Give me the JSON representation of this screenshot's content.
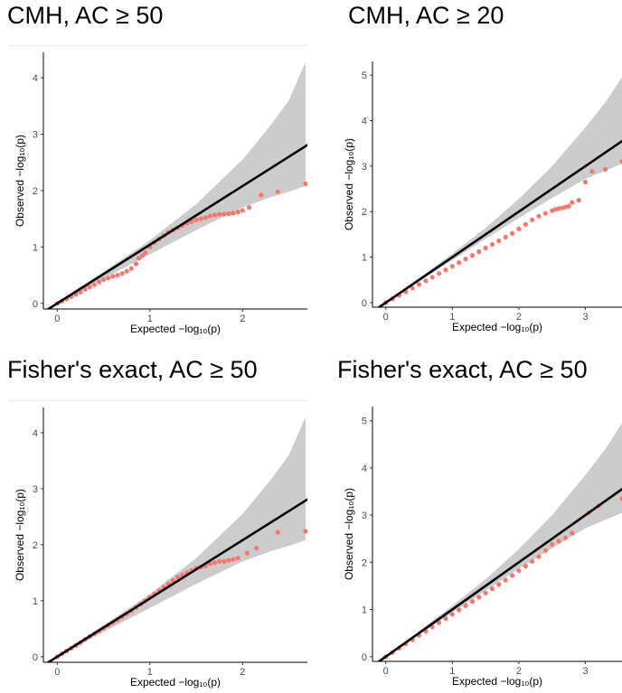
{
  "chart_data": [
    {
      "type": "scatter",
      "title": "CMH, AC ≥ 50",
      "xlabel": "Expected −log₁₀(p)",
      "ylabel": "Observed −log₁₀(p)",
      "xlim": [
        -0.15,
        2.7
      ],
      "ylim": [
        -0.1,
        4.45
      ],
      "xticks": [
        0,
        1,
        2
      ],
      "yticks": [
        0,
        1,
        2,
        3,
        4
      ],
      "grid": false,
      "reference_line": {
        "slope": 1.04,
        "intercept": 0
      },
      "band": {
        "x": [
          0,
          0.5,
          1.0,
          1.5,
          2.0,
          2.3,
          2.5,
          2.68
        ],
        "lower": [
          0,
          0.44,
          0.87,
          1.3,
          1.7,
          1.88,
          1.98,
          2.08
        ],
        "upper": [
          0.02,
          0.56,
          1.12,
          1.76,
          2.55,
          3.15,
          3.6,
          4.28
        ]
      },
      "series": [
        {
          "color": "#f8766d",
          "x": [
            0,
            0.05,
            0.1,
            0.15,
            0.2,
            0.25,
            0.3,
            0.35,
            0.4,
            0.45,
            0.5,
            0.55,
            0.6,
            0.65,
            0.7,
            0.75,
            0.8,
            0.85,
            0.88,
            0.92,
            0.95,
            1.0,
            1.05,
            1.1,
            1.15,
            1.2,
            1.25,
            1.3,
            1.35,
            1.4,
            1.45,
            1.5,
            1.55,
            1.6,
            1.65,
            1.7,
            1.75,
            1.8,
            1.85,
            1.9,
            1.95,
            2.0,
            2.07,
            2.2,
            2.38,
            2.68
          ],
          "y": [
            0,
            0.04,
            0.08,
            0.12,
            0.16,
            0.2,
            0.25,
            0.29,
            0.33,
            0.38,
            0.42,
            0.45,
            0.48,
            0.5,
            0.53,
            0.57,
            0.62,
            0.7,
            0.8,
            0.85,
            0.9,
            1.0,
            1.08,
            1.14,
            1.2,
            1.26,
            1.3,
            1.34,
            1.38,
            1.42,
            1.45,
            1.48,
            1.5,
            1.52,
            1.55,
            1.57,
            1.58,
            1.58,
            1.59,
            1.6,
            1.62,
            1.65,
            1.7,
            1.92,
            1.98,
            2.12
          ]
        }
      ]
    },
    {
      "type": "scatter",
      "title": "CMH, AC ≥ 20",
      "xlabel": "Expected −log₁₀(p)",
      "ylabel": "Observed −log₁₀(p)",
      "xlim": [
        -0.2,
        3.55
      ],
      "ylim": [
        -0.1,
        5.3
      ],
      "xticks": [
        0,
        1,
        2,
        3
      ],
      "yticks": [
        0,
        1,
        2,
        3,
        4,
        5
      ],
      "grid": false,
      "reference_line": {
        "slope": 1.0,
        "intercept": 0
      },
      "band": {
        "x": [
          0,
          0.5,
          1.0,
          1.5,
          2.0,
          2.5,
          3.0,
          3.3,
          3.55
        ],
        "lower": [
          0,
          0.47,
          0.93,
          1.4,
          1.86,
          2.3,
          2.72,
          2.9,
          3.05
        ],
        "upper": [
          0.02,
          0.54,
          1.08,
          1.64,
          2.28,
          3.0,
          3.85,
          4.4,
          4.95
        ]
      },
      "series": [
        {
          "color": "#f8766d",
          "x": [
            0,
            0.1,
            0.2,
            0.3,
            0.4,
            0.5,
            0.6,
            0.7,
            0.8,
            0.9,
            1.0,
            1.1,
            1.2,
            1.3,
            1.4,
            1.5,
            1.6,
            1.7,
            1.8,
            1.9,
            2.0,
            2.1,
            2.2,
            2.3,
            2.4,
            2.5,
            2.55,
            2.6,
            2.65,
            2.7,
            2.75,
            2.8,
            2.9,
            3.0,
            3.1,
            3.3,
            3.55
          ],
          "y": [
            0,
            0.08,
            0.16,
            0.24,
            0.32,
            0.4,
            0.48,
            0.56,
            0.64,
            0.72,
            0.8,
            0.88,
            0.96,
            1.04,
            1.12,
            1.2,
            1.28,
            1.36,
            1.44,
            1.52,
            1.62,
            1.72,
            1.82,
            1.9,
            1.96,
            2.02,
            2.05,
            2.07,
            2.08,
            2.1,
            2.12,
            2.2,
            2.25,
            2.65,
            2.88,
            2.93,
            3.1
          ]
        }
      ]
    },
    {
      "type": "scatter",
      "title": "Fisher's exact, AC ≥ 50",
      "xlabel": "Expected −log₁₀(p)",
      "ylabel": "Observed −log₁₀(p)",
      "xlim": [
        -0.15,
        2.7
      ],
      "ylim": [
        -0.1,
        4.45
      ],
      "xticks": [
        0,
        1,
        2
      ],
      "yticks": [
        0,
        1,
        2,
        3,
        4
      ],
      "grid": false,
      "reference_line": {
        "slope": 1.04,
        "intercept": 0
      },
      "band": {
        "x": [
          0,
          0.5,
          1.0,
          1.5,
          2.0,
          2.3,
          2.5,
          2.68
        ],
        "lower": [
          0,
          0.44,
          0.87,
          1.3,
          1.7,
          1.88,
          1.98,
          2.08
        ],
        "upper": [
          0.02,
          0.56,
          1.12,
          1.76,
          2.55,
          3.15,
          3.6,
          4.28
        ]
      },
      "series": [
        {
          "color": "#f8766d",
          "x": [
            0,
            0.05,
            0.1,
            0.15,
            0.2,
            0.25,
            0.3,
            0.35,
            0.4,
            0.45,
            0.5,
            0.55,
            0.6,
            0.65,
            0.7,
            0.75,
            0.8,
            0.85,
            0.9,
            0.95,
            1.0,
            1.05,
            1.1,
            1.15,
            1.2,
            1.25,
            1.3,
            1.35,
            1.4,
            1.45,
            1.5,
            1.55,
            1.6,
            1.65,
            1.7,
            1.75,
            1.8,
            1.85,
            1.9,
            1.95,
            2.05,
            2.15,
            2.38,
            2.68
          ],
          "y": [
            0,
            0.05,
            0.1,
            0.15,
            0.2,
            0.25,
            0.31,
            0.36,
            0.41,
            0.46,
            0.51,
            0.56,
            0.61,
            0.66,
            0.71,
            0.76,
            0.82,
            0.88,
            0.94,
            1.0,
            1.06,
            1.12,
            1.18,
            1.24,
            1.3,
            1.36,
            1.42,
            1.46,
            1.5,
            1.54,
            1.58,
            1.6,
            1.62,
            1.66,
            1.68,
            1.7,
            1.7,
            1.72,
            1.74,
            1.76,
            1.85,
            1.94,
            2.22,
            2.24
          ]
        }
      ]
    },
    {
      "type": "scatter",
      "title": "Fisher's exact, AC ≥ 50",
      "xlabel": "Expected −log₁₀(p)",
      "ylabel": "Observed −log₁₀(p)",
      "xlim": [
        -0.2,
        3.55
      ],
      "ylim": [
        -0.1,
        5.3
      ],
      "xticks": [
        0,
        1,
        2,
        3
      ],
      "yticks": [
        0,
        1,
        2,
        3,
        4,
        5
      ],
      "grid": false,
      "reference_line": {
        "slope": 1.0,
        "intercept": 0
      },
      "band": {
        "x": [
          0,
          0.5,
          1.0,
          1.5,
          2.0,
          2.5,
          3.0,
          3.3,
          3.55
        ],
        "lower": [
          0,
          0.47,
          0.93,
          1.4,
          1.86,
          2.3,
          2.72,
          2.9,
          3.05
        ],
        "upper": [
          0.02,
          0.54,
          1.08,
          1.64,
          2.28,
          3.0,
          3.85,
          4.4,
          4.95
        ]
      },
      "series": [
        {
          "color": "#f8766d",
          "x": [
            0,
            0.1,
            0.2,
            0.3,
            0.4,
            0.5,
            0.6,
            0.7,
            0.8,
            0.9,
            1.0,
            1.1,
            1.2,
            1.3,
            1.4,
            1.5,
            1.6,
            1.7,
            1.8,
            1.9,
            2.0,
            2.1,
            2.2,
            2.3,
            2.4,
            2.5,
            2.6,
            2.7,
            2.8,
            3.05,
            3.2,
            3.55
          ],
          "y": [
            0,
            0.09,
            0.18,
            0.27,
            0.36,
            0.45,
            0.54,
            0.63,
            0.72,
            0.81,
            0.9,
            0.99,
            1.08,
            1.17,
            1.26,
            1.35,
            1.44,
            1.53,
            1.62,
            1.72,
            1.82,
            1.92,
            2.02,
            2.12,
            2.25,
            2.38,
            2.45,
            2.52,
            2.62,
            3.05,
            3.2,
            3.35
          ]
        }
      ]
    }
  ]
}
